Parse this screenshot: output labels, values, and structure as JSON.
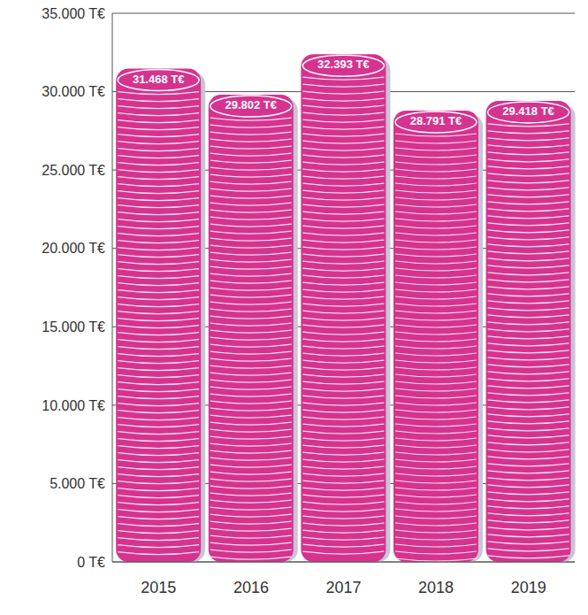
{
  "chart_data": {
    "type": "bar",
    "categories": [
      "2015",
      "2016",
      "2017",
      "2018",
      "2019"
    ],
    "values": [
      31468,
      29802,
      32393,
      28791,
      29418
    ],
    "value_labels": [
      "31.468 T€",
      "29.802 T€",
      "32.393 T€",
      "28.791 T€",
      "29.418 T€"
    ],
    "data_labels": true,
    "color": "#d6338f",
    "ylim": [
      0,
      35000
    ],
    "yticks": [
      {
        "value": 0,
        "label": "0 T€"
      },
      {
        "value": 5000,
        "label": "5.000 T€"
      },
      {
        "value": 10000,
        "label": "10.000 T€"
      },
      {
        "value": 15000,
        "label": "15.000 T€"
      },
      {
        "value": 20000,
        "label": "20.000 T€"
      },
      {
        "value": 25000,
        "label": "25.000 T€"
      },
      {
        "value": 30000,
        "label": "30.000 T€"
      },
      {
        "value": 35000,
        "label": "35.000 T€"
      }
    ],
    "grid": true
  }
}
